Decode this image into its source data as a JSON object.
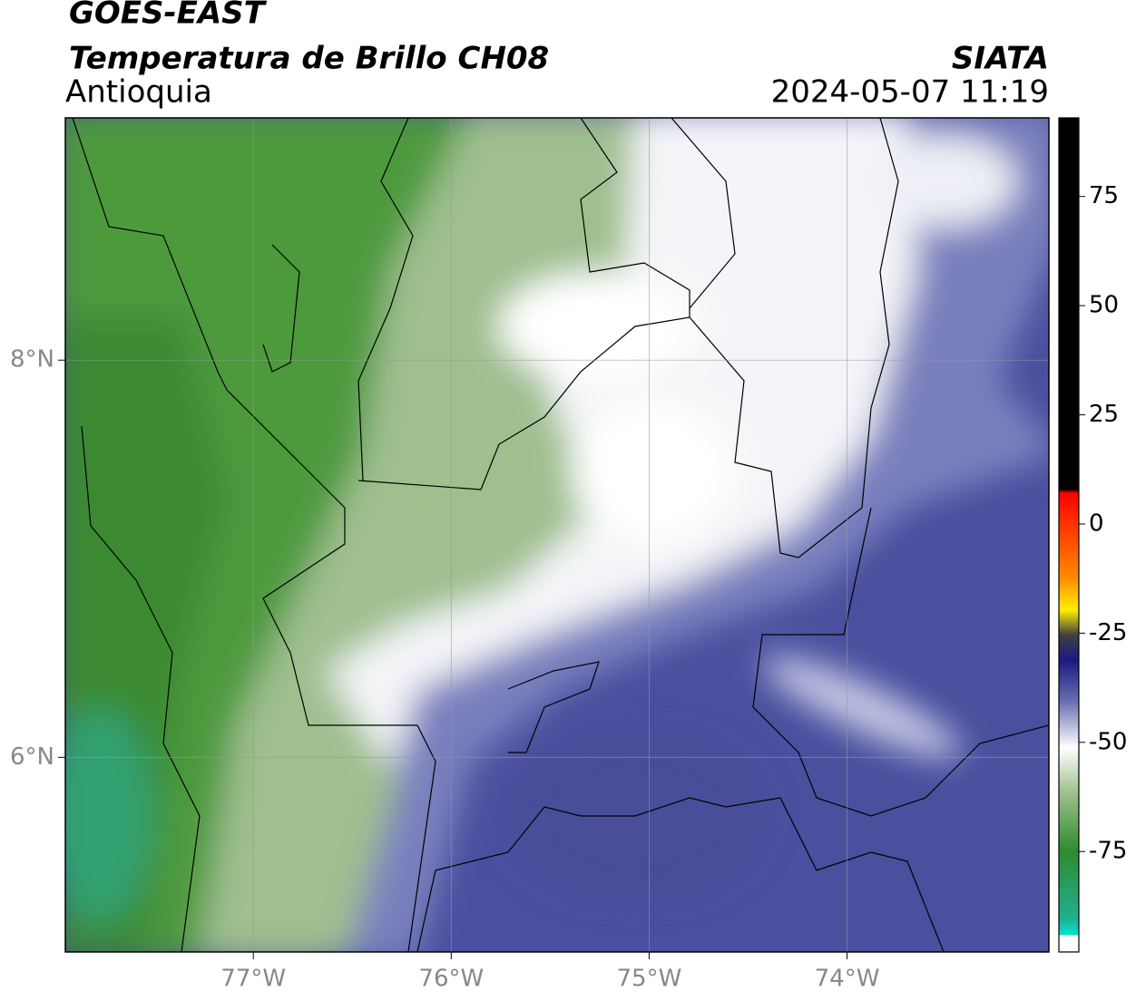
{
  "header": {
    "title": "GOES-EAST",
    "subtitle": "Temperatura de Brillo CH08",
    "region": "Antioquia",
    "source": "SIATA",
    "datetime": "2024-05-07 11:19"
  },
  "map": {
    "xlim": [
      -77.95,
      -72.98
    ],
    "ylim": [
      5.02,
      9.22
    ],
    "xticks": [
      {
        "value": -77,
        "label": "77°W"
      },
      {
        "value": -76,
        "label": "76°W"
      },
      {
        "value": -75,
        "label": "75°W"
      },
      {
        "value": -74,
        "label": "74°W"
      }
    ],
    "yticks": [
      {
        "value": 8,
        "label": "8°N"
      },
      {
        "value": 6,
        "label": "6°N"
      }
    ],
    "grid": true
  },
  "colorbar": {
    "lim": [
      -98,
      93
    ],
    "ticks": [
      75,
      50,
      25,
      0,
      -25,
      -50,
      -75
    ]
  }
}
